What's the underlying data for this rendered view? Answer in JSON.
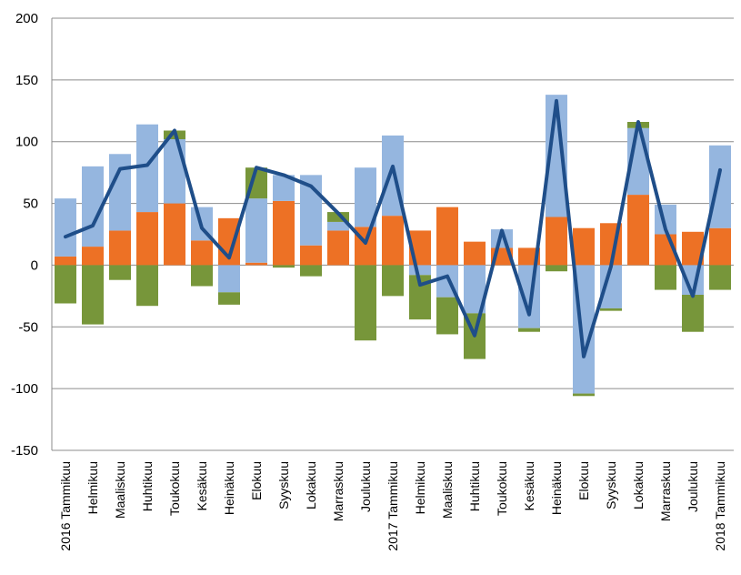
{
  "chart_data": {
    "type": "bar",
    "stacked": true,
    "categories": [
      "2016 Tammikuu",
      "Helmikuu",
      "Maaliskuu",
      "Huhtikuu",
      "Toukokuu",
      "Kesäkuu",
      "Heinäkuu",
      "Elokuu",
      "Syyskuu",
      "Lokakuu",
      "Marraskuu",
      "Joulukuu",
      "2017 Tammikuu",
      "Helmikuu",
      "Maaliskuu",
      "Huhtikuu",
      "Toukokuu",
      "Kesäkuu",
      "Heinäkuu",
      "Elokuu",
      "Syyskuu",
      "Lokakuu",
      "Marraskuu",
      "Joulukuu",
      "2018 Tammikuu"
    ],
    "ylim": [
      -150,
      200
    ],
    "yticks": [
      -150,
      -100,
      -50,
      0,
      50,
      100,
      150,
      200
    ],
    "grid": true,
    "series": [
      {
        "type": "bar",
        "color": "#ed7125",
        "values": [
          7,
          15,
          28,
          43,
          50,
          20,
          38,
          2,
          52,
          16,
          28,
          31,
          40,
          28,
          47,
          19,
          14,
          14,
          39,
          30,
          34,
          57,
          25,
          27,
          30
        ]
      },
      {
        "type": "bar",
        "color": "#95b6df",
        "values": [
          47,
          65,
          62,
          71,
          52,
          27,
          -22,
          52,
          21,
          57,
          7,
          48,
          65,
          -8,
          -26,
          -39,
          15,
          -51,
          99,
          -104,
          -35,
          54,
          24,
          -24,
          67
        ]
      },
      {
        "type": "bar",
        "color": "#77963a",
        "values": [
          -31,
          -48,
          -12,
          -33,
          7,
          -17,
          -10,
          25,
          -2,
          -9,
          8,
          -61,
          -25,
          -36,
          -30,
          -37,
          0,
          -3,
          -5,
          -2,
          -2,
          5,
          -20,
          -30,
          -20
        ]
      },
      {
        "type": "line",
        "color": "#1f4e89",
        "values": [
          23,
          32,
          78,
          81,
          109,
          30,
          6,
          79,
          73,
          64,
          42,
          18,
          80,
          -16,
          -9,
          -57,
          28,
          -40,
          133,
          -74,
          -1,
          116,
          29,
          -25,
          77
        ]
      }
    ]
  }
}
